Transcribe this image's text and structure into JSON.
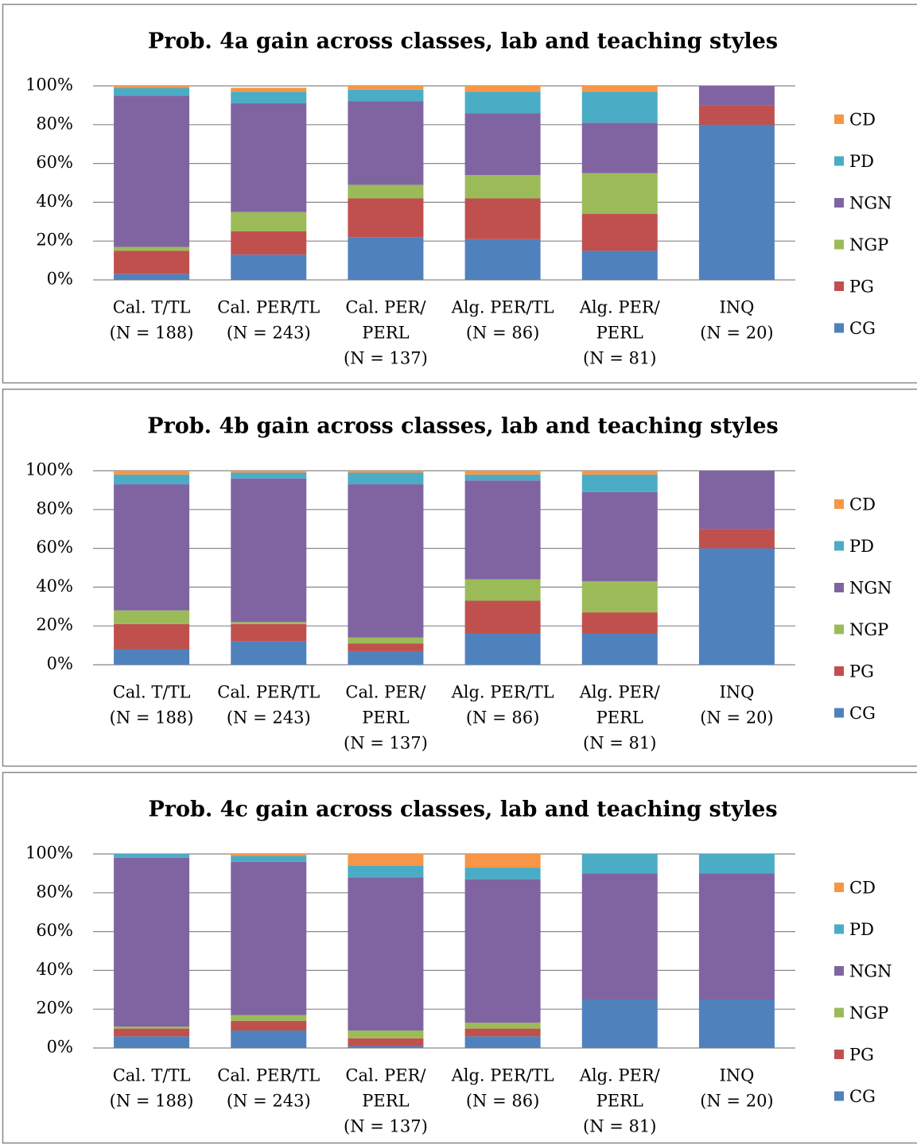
{
  "chart_data": [
    {
      "type": "bar",
      "stacked": true,
      "title": "Prob. 4a gain across classes, lab and teaching styles",
      "categories": [
        [
          "Cal. T/TL",
          "(N = 188)"
        ],
        [
          "Cal. PER/TL",
          "(N = 243)"
        ],
        [
          "Cal. PER/",
          "PERL",
          "(N = 137)"
        ],
        [
          "Alg. PER/TL",
          "(N = 86)"
        ],
        [
          "Alg. PER/",
          "PERL",
          "(N = 81)"
        ],
        [
          "INQ",
          "(N = 20)"
        ]
      ],
      "series": [
        {
          "name": "CG",
          "color": "#4f81bd",
          "values": [
            3,
            13,
            22,
            21,
            15,
            80
          ]
        },
        {
          "name": "PG",
          "color": "#c0504d",
          "values": [
            12,
            12,
            20,
            21,
            19,
            10
          ]
        },
        {
          "name": "NGP",
          "color": "#9bbb59",
          "values": [
            2,
            10,
            7,
            12,
            21,
            0
          ]
        },
        {
          "name": "NGN",
          "color": "#8064a2",
          "values": [
            78,
            56,
            43,
            32,
            26,
            10
          ]
        },
        {
          "name": "PD",
          "color": "#4bacc6",
          "values": [
            4,
            6,
            6,
            11,
            16,
            0
          ]
        },
        {
          "name": "CD",
          "color": "#f79646",
          "values": [
            1,
            2,
            2,
            3,
            3,
            0
          ]
        }
      ],
      "ylim": [
        0,
        100
      ],
      "yticks": [
        {
          "value": 0,
          "label": "0%"
        },
        {
          "value": 20,
          "label": "20%"
        },
        {
          "value": 40,
          "label": "40%"
        },
        {
          "value": 60,
          "label": "60%"
        },
        {
          "value": 80,
          "label": "80%"
        },
        {
          "value": 100,
          "label": "100%"
        }
      ],
      "grid": true,
      "legend": "right"
    },
    {
      "type": "bar",
      "stacked": true,
      "title": "Prob. 4b gain across classes, lab and teaching styles",
      "categories": [
        [
          "Cal. T/TL",
          "(N = 188)"
        ],
        [
          "Cal. PER/TL",
          "(N = 243)"
        ],
        [
          "Cal. PER/",
          "PERL",
          "(N = 137)"
        ],
        [
          "Alg. PER/TL",
          "(N = 86)"
        ],
        [
          "Alg. PER/",
          "PERL",
          "(N = 81)"
        ],
        [
          "INQ",
          "(N = 20)"
        ]
      ],
      "series": [
        {
          "name": "CG",
          "color": "#4f81bd",
          "values": [
            8,
            12,
            7,
            16,
            16,
            60
          ]
        },
        {
          "name": "PG",
          "color": "#c0504d",
          "values": [
            13,
            9,
            4,
            17,
            11,
            10
          ]
        },
        {
          "name": "NGP",
          "color": "#9bbb59",
          "values": [
            7,
            1,
            3,
            11,
            16,
            0
          ]
        },
        {
          "name": "NGN",
          "color": "#8064a2",
          "values": [
            65,
            74,
            79,
            51,
            46,
            30
          ]
        },
        {
          "name": "PD",
          "color": "#4bacc6",
          "values": [
            5,
            3,
            6,
            3,
            9,
            0
          ]
        },
        {
          "name": "CD",
          "color": "#f79646",
          "values": [
            2,
            1,
            1,
            2,
            2,
            0
          ]
        }
      ],
      "ylim": [
        0,
        100
      ],
      "yticks": [
        {
          "value": 0,
          "label": "0%"
        },
        {
          "value": 20,
          "label": "20%"
        },
        {
          "value": 40,
          "label": "40%"
        },
        {
          "value": 60,
          "label": "60%"
        },
        {
          "value": 80,
          "label": "80%"
        },
        {
          "value": 100,
          "label": "100%"
        }
      ],
      "grid": true,
      "legend": "right"
    },
    {
      "type": "bar",
      "stacked": true,
      "title": "Prob. 4c gain across classes, lab and teaching styles",
      "categories": [
        [
          "Cal. T/TL",
          "(N = 188)"
        ],
        [
          "Cal. PER/TL",
          "(N = 243)"
        ],
        [
          "Cal. PER/",
          "PERL",
          "(N = 137)"
        ],
        [
          "Alg. PER/TL",
          "(N = 86)"
        ],
        [
          "Alg. PER/",
          "PERL",
          "(N = 81)"
        ],
        [
          "INQ",
          "(N = 20)"
        ]
      ],
      "series": [
        {
          "name": "CG",
          "color": "#4f81bd",
          "values": [
            6,
            9,
            1,
            6,
            25,
            25
          ]
        },
        {
          "name": "PG",
          "color": "#c0504d",
          "values": [
            4,
            5,
            4,
            4,
            0,
            0
          ]
        },
        {
          "name": "NGP",
          "color": "#9bbb59",
          "values": [
            1,
            3,
            4,
            3,
            0,
            0
          ]
        },
        {
          "name": "NGN",
          "color": "#8064a2",
          "values": [
            87,
            79,
            79,
            74,
            65,
            65
          ]
        },
        {
          "name": "PD",
          "color": "#4bacc6",
          "values": [
            2,
            3,
            6,
            6,
            10,
            10
          ]
        },
        {
          "name": "CD",
          "color": "#f79646",
          "values": [
            0,
            1,
            6,
            7,
            0,
            0
          ]
        }
      ],
      "ylim": [
        0,
        100
      ],
      "yticks": [
        {
          "value": 0,
          "label": "0%"
        },
        {
          "value": 20,
          "label": "20%"
        },
        {
          "value": 40,
          "label": "40%"
        },
        {
          "value": 60,
          "label": "60%"
        },
        {
          "value": 80,
          "label": "80%"
        },
        {
          "value": 100,
          "label": "100%"
        }
      ],
      "grid": true,
      "legend": "right"
    }
  ]
}
